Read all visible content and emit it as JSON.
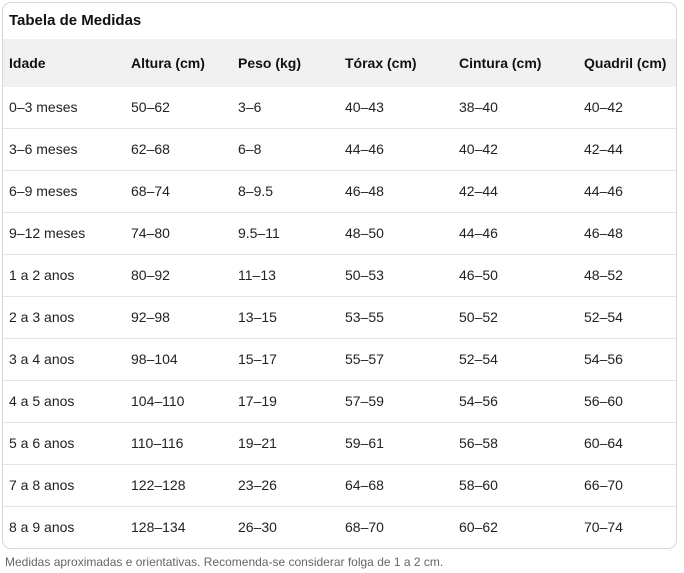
{
  "title": "Tabela de Medidas",
  "table": {
    "columns": [
      "Idade",
      "Altura (cm)",
      "Peso (kg)",
      "Tórax (cm)",
      "Cintura (cm)",
      "Quadril (cm)"
    ],
    "rows": [
      [
        "0–3 meses",
        "50–62",
        "3–6",
        "40–43",
        "38–40",
        "40–42"
      ],
      [
        "3–6 meses",
        "62–68",
        "6–8",
        "44–46",
        "40–42",
        "42–44"
      ],
      [
        "6–9 meses",
        "68–74",
        "8–9.5",
        "46–48",
        "42–44",
        "44–46"
      ],
      [
        "9–12 meses",
        "74–80",
        "9.5–11",
        "48–50",
        "44–46",
        "46–48"
      ],
      [
        "1 a 2 anos",
        "80–92",
        "11–13",
        "50–53",
        "46–50",
        "48–52"
      ],
      [
        "2 a 3 anos",
        "92–98",
        "13–15",
        "53–55",
        "50–52",
        "52–54"
      ],
      [
        "3 a 4 anos",
        "98–104",
        "15–17",
        "55–57",
        "52–54",
        "54–56"
      ],
      [
        "4 a 5 anos",
        "104–110",
        "17–19",
        "57–59",
        "54–56",
        "56–60"
      ],
      [
        "5 a 6 anos",
        "110–116",
        "19–21",
        "59–61",
        "56–58",
        "60–64"
      ],
      [
        "7 a 8 anos",
        "122–128",
        "23–26",
        "64–68",
        "58–60",
        "66–70"
      ],
      [
        "8 a 9 anos",
        "128–134",
        "26–30",
        "68–70",
        "60–62",
        "70–74"
      ]
    ]
  },
  "footnote": "Medidas aproximadas e orientativas. Recomenda-se considerar folga de 1 a 2 cm.",
  "colors": {
    "header_bg": "#f1f1f2",
    "border": "#d6d6d6",
    "row_divider": "#e4e4e4",
    "title_text": "#111111",
    "cell_text": "#222222",
    "footnote_text": "#666666"
  }
}
